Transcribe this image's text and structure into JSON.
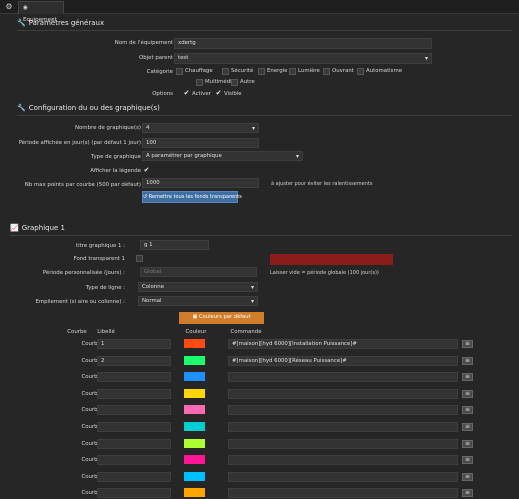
{
  "tab": {
    "label": "Equipement"
  },
  "general": {
    "title": "Paramètres généraux",
    "name_label": "Nom de l'équipement",
    "name_value": "xdertg",
    "parent_label": "Objet parent",
    "parent_value": "test",
    "category_label": "Catégorie",
    "categories": [
      "Chauffage",
      "Sécurité",
      "Energie",
      "Lumière",
      "Ouvrant",
      "Automatisme",
      "Multimédia",
      "Autre"
    ],
    "options_label": "Options",
    "option_active": "Activer",
    "option_visible": "Visible"
  },
  "config": {
    "title": "Configuration du ou des graphique(s)",
    "count_label": "Nombre de graphique(s)",
    "count_value": "4",
    "period_label": "Période affichée en jour(s) (par défaut 1 jour)",
    "period_value": "100",
    "type_label": "Type de graphique",
    "type_value": "A paramétrer par graphique",
    "legend_label": "Afficher la légende",
    "maxpoints_label": "Nb max points par courbe (500 par défaut)",
    "maxpoints_value": "1000",
    "maxpoints_note": "à ajuster pour éviter les ralentissements",
    "reset_button": "Remettre tous les fonds transparents"
  },
  "graph1": {
    "title": "Graphique 1",
    "title_label": "titre graphique 1 :",
    "title_value": "g 1",
    "transparent_label": "Fond transparent 1",
    "period_label": "Période personnalisée (jours) :",
    "period_placeholder": "Global",
    "period_note": "Laisser vide = période globale (100 jour(s))",
    "line_type_label": "Type de ligne :",
    "line_type_value": "Colonne",
    "stack_label": "Empilement (si aire ou colonne) :",
    "stack_value": "Normal",
    "default_colors_button": "Couleurs par défaut",
    "col_curve": "Courbe",
    "col_label": "Libellé",
    "col_color": "Couleur",
    "col_command": "Commande",
    "curves": [
      {
        "name": "Courbe 01 :",
        "label": "1",
        "color": "#ff4a12",
        "command": "#[maison][hyd 6000][Installation Puissance]#"
      },
      {
        "name": "Courbe 02 :",
        "label": "2",
        "color": "#1cff6c",
        "command": "#[maison][hyd 6000][Réseau Puissance]#"
      },
      {
        "name": "Courbe 03 :",
        "label": "",
        "color": "#1e90ff",
        "command": ""
      },
      {
        "name": "Courbe 04 :",
        "label": "",
        "color": "#ffd700",
        "command": ""
      },
      {
        "name": "Courbe 05 :",
        "label": "",
        "color": "#ff69b4",
        "command": ""
      },
      {
        "name": "Courbe 06 :",
        "label": "",
        "color": "#00ced1",
        "command": ""
      },
      {
        "name": "Courbe 07 :",
        "label": "",
        "color": "#adff2f",
        "command": ""
      },
      {
        "name": "Courbe 08 :",
        "label": "",
        "color": "#ff1493",
        "command": ""
      },
      {
        "name": "Courbe 09 :",
        "label": "",
        "color": "#00bfff",
        "command": ""
      },
      {
        "name": "Courbe 10 :",
        "label": "",
        "color": "#ffa500",
        "command": ""
      }
    ]
  }
}
